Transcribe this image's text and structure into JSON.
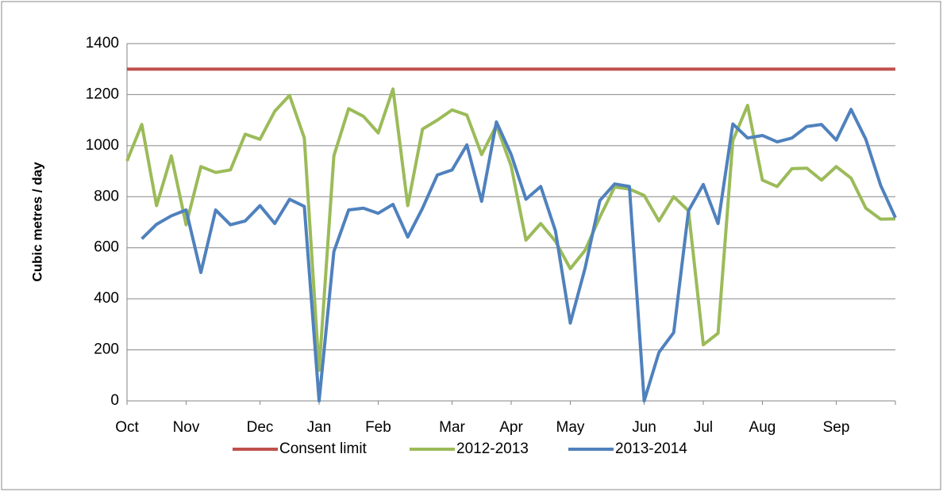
{
  "chart_data": {
    "type": "line",
    "y_label": "Cubic metres / day",
    "categories": [
      "Oct",
      null,
      null,
      null,
      "Nov",
      null,
      null,
      null,
      null,
      "Dec",
      null,
      null,
      null,
      "Jan",
      null,
      null,
      null,
      "Feb",
      null,
      null,
      null,
      null,
      "Mar",
      null,
      null,
      null,
      "Apr",
      null,
      null,
      null,
      "May",
      null,
      null,
      null,
      null,
      "Jun",
      null,
      null,
      null,
      "Jul",
      null,
      null,
      null,
      "Aug",
      null,
      null,
      null,
      null,
      "Sep",
      null,
      null,
      null,
      null
    ],
    "series": [
      {
        "name": "Consent limit",
        "color": "#c0504d",
        "values": [
          1300,
          1300,
          1300,
          1300,
          1300,
          1300,
          1300,
          1300,
          1300,
          1300,
          1300,
          1300,
          1300,
          1300,
          1300,
          1300,
          1300,
          1300,
          1300,
          1300,
          1300,
          1300,
          1300,
          1300,
          1300,
          1300,
          1300,
          1300,
          1300,
          1300,
          1300,
          1300,
          1300,
          1300,
          1300,
          1300,
          1300,
          1300,
          1300,
          1300,
          1300,
          1300,
          1300,
          1300,
          1300,
          1300,
          1300,
          1300,
          1300,
          1300,
          1300,
          1300,
          1300
        ]
      },
      {
        "name": "2012-2013",
        "color": "#9bbb59",
        "values": [
          940,
          1083,
          765,
          960,
          690,
          918,
          895,
          905,
          1045,
          1025,
          1135,
          1197,
          1030,
          120,
          960,
          1145,
          1115,
          1050,
          1222,
          765,
          1065,
          1100,
          1140,
          1120,
          965,
          1080,
          920,
          630,
          695,
          625,
          518,
          590,
          720,
          838,
          830,
          805,
          705,
          800,
          745,
          220,
          265,
          1020,
          1158,
          865,
          840,
          910,
          912,
          865,
          918,
          873,
          755,
          712,
          713
        ]
      },
      {
        "name": "2013-2014",
        "color": "#4f81bd",
        "values": [
          null,
          635,
          692,
          725,
          748,
          503,
          748,
          690,
          705,
          765,
          695,
          790,
          762,
          0,
          585,
          748,
          755,
          735,
          770,
          642,
          755,
          885,
          905,
          1003,
          782,
          1093,
          965,
          790,
          840,
          665,
          305,
          520,
          785,
          850,
          840,
          0,
          190,
          268,
          745,
          848,
          695,
          1085,
          1030,
          1040,
          1015,
          1030,
          1075,
          1083,
          1022,
          1142,
          1025,
          845,
          718
        ]
      }
    ],
    "ylim": [
      0,
      1400
    ],
    "yticks": [
      0,
      200,
      400,
      600,
      800,
      1000,
      1200,
      1400
    ],
    "grid": true,
    "legend": "bottom"
  }
}
